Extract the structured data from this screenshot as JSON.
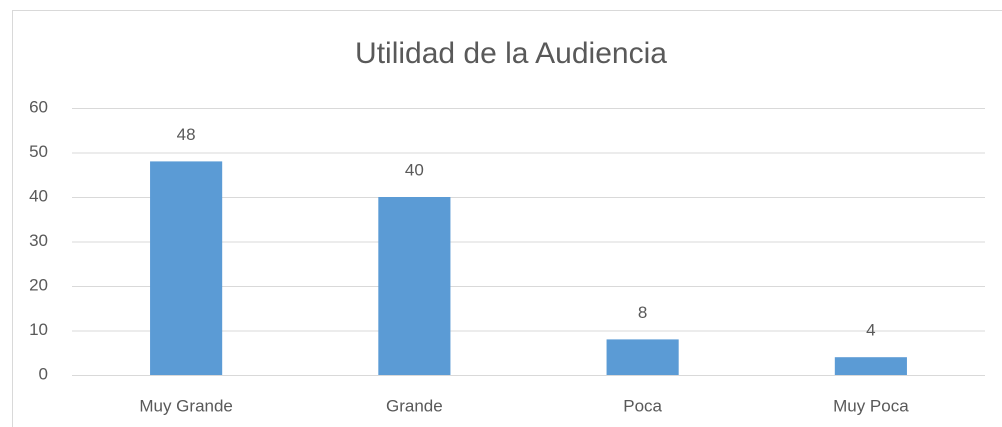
{
  "chart_data": {
    "type": "bar",
    "title": "Utilidad de la Audiencia",
    "categories": [
      "Muy Grande",
      "Grande",
      "Poca",
      "Muy Poca"
    ],
    "values": [
      48,
      40,
      8,
      4
    ],
    "color": "#5b9bd5",
    "ylim": [
      0,
      60
    ],
    "yticks": [
      0,
      10,
      20,
      30,
      40,
      50,
      60
    ],
    "grid": true,
    "data_labels": true
  }
}
